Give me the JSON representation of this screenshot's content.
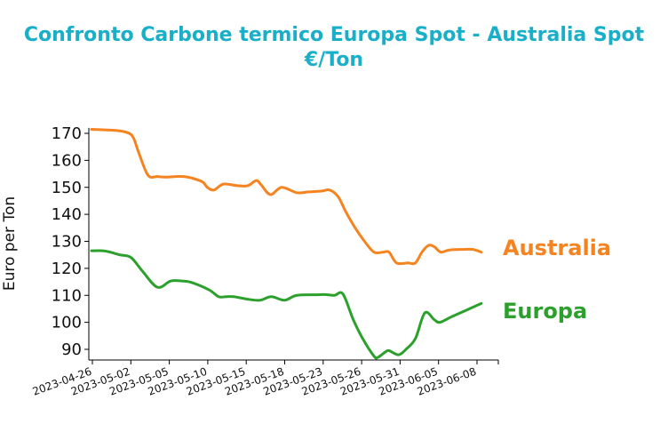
{
  "chart_data": {
    "type": "line",
    "title_lines": [
      "Confronto Carbone termico Europa Spot - Australia Spot",
      "€/Ton"
    ],
    "xlabel": "",
    "ylabel": "Euro per Ton",
    "ylim": [
      86,
      172
    ],
    "yticks": [
      90,
      100,
      110,
      120,
      130,
      140,
      150,
      160,
      170
    ],
    "xticks": [
      "2023-04-26",
      "2023-05-02",
      "2023-05-05",
      "2023-05-10",
      "2023-05-15",
      "2023-05-18",
      "2023-05-23",
      "2023-05-26",
      "2023-05-31",
      "2023-06-05",
      "2023-06-08"
    ],
    "grid": false,
    "legend": "inline-right",
    "series": [
      {
        "name": "Australia",
        "color": "#f5831f",
        "points": [
          [
            0,
            171.5
          ],
          [
            2.8,
            171
          ],
          [
            4,
            170
          ],
          [
            4.5,
            168
          ],
          [
            5,
            163
          ],
          [
            6,
            154.5
          ],
          [
            7,
            154
          ],
          [
            8,
            153.8
          ],
          [
            9,
            154
          ],
          [
            9.8,
            154
          ],
          [
            10.6,
            153.5
          ],
          [
            11.8,
            152
          ],
          [
            12.3,
            150
          ],
          [
            13,
            149
          ],
          [
            14,
            151.2
          ],
          [
            15.5,
            150.6
          ],
          [
            16.6,
            150.6
          ],
          [
            17.5,
            152.5
          ],
          [
            18,
            151
          ],
          [
            19,
            147.3
          ],
          [
            20.2,
            150
          ],
          [
            21.8,
            148
          ],
          [
            23,
            148.3
          ],
          [
            24.4,
            148.6
          ],
          [
            25.3,
            149
          ],
          [
            26.2,
            146.5
          ],
          [
            27,
            141
          ],
          [
            28,
            135
          ],
          [
            29,
            130
          ],
          [
            30,
            126
          ],
          [
            31,
            126
          ],
          [
            31.6,
            126
          ],
          [
            32.4,
            122
          ],
          [
            33.6,
            122
          ],
          [
            34.4,
            122
          ],
          [
            35.1,
            126
          ],
          [
            35.8,
            128.5
          ],
          [
            36.4,
            128
          ],
          [
            37.1,
            126
          ],
          [
            38,
            126.8
          ],
          [
            39.4,
            127
          ],
          [
            40.5,
            127
          ],
          [
            41.4,
            126
          ]
        ]
      },
      {
        "name": "Europa",
        "color": "#2ca02c",
        "points": [
          [
            0,
            126.5
          ],
          [
            1.2,
            126.5
          ],
          [
            2,
            126
          ],
          [
            3,
            125
          ],
          [
            4.2,
            124
          ],
          [
            5.4,
            119
          ],
          [
            7,
            113
          ],
          [
            8.4,
            115.3
          ],
          [
            9.6,
            115.3
          ],
          [
            10.6,
            114.8
          ],
          [
            12.5,
            112
          ],
          [
            13.5,
            109.5
          ],
          [
            14.3,
            109.5
          ],
          [
            15.1,
            109.5
          ],
          [
            16.7,
            108.5
          ],
          [
            17.9,
            108.2
          ],
          [
            19.1,
            109.5
          ],
          [
            20.5,
            108.2
          ],
          [
            21.8,
            110
          ],
          [
            24,
            110.2
          ],
          [
            24.8,
            110.3
          ],
          [
            25.8,
            110
          ],
          [
            26.7,
            110.5
          ],
          [
            27.8,
            101
          ],
          [
            28.8,
            94
          ],
          [
            30,
            87.5
          ],
          [
            30.4,
            87
          ],
          [
            31.2,
            89
          ],
          [
            31.6,
            89.5
          ],
          [
            32.6,
            88
          ],
          [
            33.4,
            90
          ],
          [
            34.4,
            94
          ],
          [
            35.4,
            103.5
          ],
          [
            36.4,
            101
          ],
          [
            37,
            100
          ],
          [
            38.2,
            102
          ],
          [
            39.8,
            104.5
          ],
          [
            41.4,
            107
          ]
        ]
      }
    ]
  }
}
